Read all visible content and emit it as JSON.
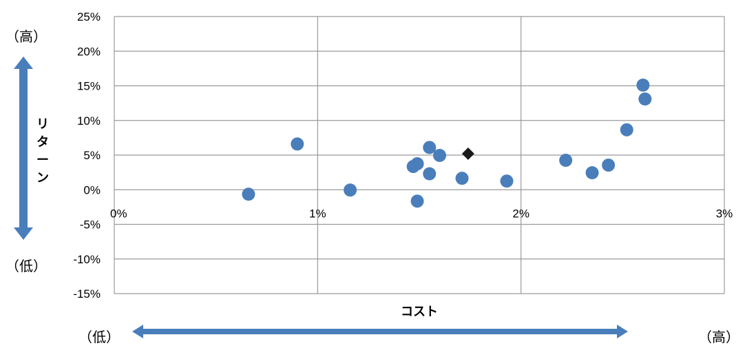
{
  "chart_data": {
    "type": "scatter",
    "title": "",
    "xlabel": "コスト",
    "ylabel": "リターン",
    "xlim": [
      0,
      0.03
    ],
    "ylim": [
      -0.15,
      0.25
    ],
    "x_ticks": [
      0,
      0.01,
      0.02,
      0.03
    ],
    "x_tick_labels": [
      "0%",
      "1%",
      "2%",
      "3%"
    ],
    "y_ticks": [
      0.25,
      0.2,
      0.15,
      0.1,
      0.05,
      0,
      -0.05,
      -0.1,
      -0.15
    ],
    "y_tick_labels": [
      "25%",
      "20%",
      "15%",
      "10%",
      "5%",
      "0%",
      "-5%",
      "-10%",
      "-15%"
    ],
    "grid": true,
    "legend": "none",
    "series": [
      {
        "marker": "circle",
        "color": "#4a7ebb",
        "points": [
          {
            "x": 0.0066,
            "y": -0.0065
          },
          {
            "x": 0.009,
            "y": 0.066
          },
          {
            "x": 0.0116,
            "y": -0.0005
          },
          {
            "x": 0.0147,
            "y": 0.0335
          },
          {
            "x": 0.0149,
            "y": 0.0375
          },
          {
            "x": 0.0149,
            "y": -0.0165
          },
          {
            "x": 0.0155,
            "y": 0.061
          },
          {
            "x": 0.0155,
            "y": 0.023
          },
          {
            "x": 0.016,
            "y": 0.0495
          },
          {
            "x": 0.0171,
            "y": 0.0165
          },
          {
            "x": 0.0193,
            "y": 0.0125
          },
          {
            "x": 0.0222,
            "y": 0.0425
          },
          {
            "x": 0.0235,
            "y": 0.0245
          },
          {
            "x": 0.0243,
            "y": 0.0355
          },
          {
            "x": 0.0252,
            "y": 0.0865
          },
          {
            "x": 0.026,
            "y": 0.151
          },
          {
            "x": 0.0261,
            "y": 0.131
          }
        ]
      },
      {
        "marker": "diamond",
        "color": "#1a1a1a",
        "points": [
          {
            "x": 0.0174,
            "y": 0.052
          }
        ]
      }
    ],
    "annotations": {
      "y_high": "（高）",
      "y_low": "（低）",
      "x_low": "（低）",
      "x_high": "（高）"
    },
    "arrow_color": "#4a7ebb"
  }
}
